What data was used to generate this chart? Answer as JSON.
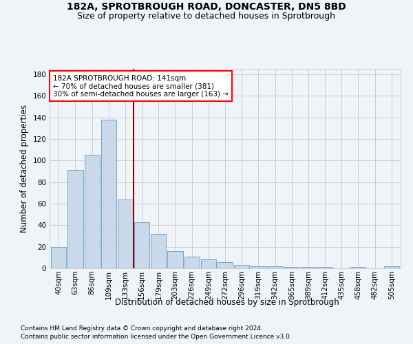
{
  "title1": "182A, SPROTBROUGH ROAD, DONCASTER, DN5 8BD",
  "title2": "Size of property relative to detached houses in Sprotbrough",
  "xlabel": "Distribution of detached houses by size in Sprotbrough",
  "ylabel": "Number of detached properties",
  "footnote1": "Contains HM Land Registry data © Crown copyright and database right 2024.",
  "footnote2": "Contains public sector information licensed under the Open Government Licence v3.0.",
  "bar_labels": [
    "40sqm",
    "63sqm",
    "86sqm",
    "109sqm",
    "133sqm",
    "156sqm",
    "179sqm",
    "203sqm",
    "226sqm",
    "249sqm",
    "272sqm",
    "296sqm",
    "319sqm",
    "342sqm",
    "365sqm",
    "389sqm",
    "412sqm",
    "435sqm",
    "458sqm",
    "482sqm",
    "505sqm"
  ],
  "bar_values": [
    20,
    91,
    105,
    138,
    64,
    43,
    32,
    16,
    11,
    8,
    6,
    3,
    2,
    2,
    1,
    1,
    1,
    0,
    1,
    0,
    2
  ],
  "bar_color": "#c9d9ea",
  "bar_edge_color": "#6fa8c8",
  "grid_color": "#c8cdd8",
  "annotation_text": "182A SPROTBROUGH ROAD: 141sqm\n← 70% of detached houses are smaller (381)\n30% of semi-detached houses are larger (163) →",
  "annotation_box_color": "white",
  "annotation_box_edge": "red",
  "vline_x": 4.5,
  "vline_color": "#8b0000",
  "ylim": [
    0,
    185
  ],
  "yticks": [
    0,
    20,
    40,
    60,
    80,
    100,
    120,
    140,
    160,
    180
  ],
  "background_color": "#f0f3f8",
  "title1_fontsize": 10,
  "title2_fontsize": 9,
  "xlabel_fontsize": 8.5,
  "ylabel_fontsize": 8.5,
  "tick_fontsize": 7.5,
  "annotation_fontsize": 7.5,
  "footnote_fontsize": 6.5
}
